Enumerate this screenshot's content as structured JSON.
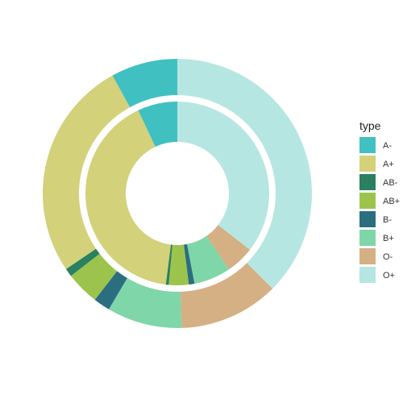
{
  "chart_data": {
    "type": "pie",
    "subtype": "nested-donut",
    "legend": {
      "title": "type",
      "placement": "right",
      "entries": [
        {
          "label": "A-",
          "color": "#40C0C0"
        },
        {
          "label": "A+",
          "color": "#D3D17A"
        },
        {
          "label": "AB-",
          "color": "#2A8060"
        },
        {
          "label": "AB+",
          "color": "#9CC44C"
        },
        {
          "label": "B-",
          "color": "#2B6E80"
        },
        {
          "label": "B+",
          "color": "#7FD6A8"
        },
        {
          "label": "O-",
          "color": "#D4B084"
        },
        {
          "label": "O+",
          "color": "#B6E6E2"
        }
      ]
    },
    "rings": [
      {
        "name": "inner",
        "slices": [
          {
            "type": "O+",
            "value": 35.5
          },
          {
            "type": "O-",
            "value": 5.0
          },
          {
            "type": "B+",
            "value": 6.5
          },
          {
            "type": "B-",
            "value": 1.0
          },
          {
            "type": "AB+",
            "value": 3.5
          },
          {
            "type": "AB-",
            "value": 0.5
          },
          {
            "type": "A+",
            "value": 41.0
          },
          {
            "type": "A-",
            "value": 7.0
          }
        ]
      },
      {
        "name": "outer",
        "slices": [
          {
            "type": "O+",
            "value": 37.5
          },
          {
            "type": "O-",
            "value": 12.0
          },
          {
            "type": "B+",
            "value": 9.0
          },
          {
            "type": "B-",
            "value": 2.0
          },
          {
            "type": "AB+",
            "value": 4.0
          },
          {
            "type": "AB-",
            "value": 1.0
          },
          {
            "type": "A+",
            "value": 26.5
          },
          {
            "type": "A-",
            "value": 8.0
          }
        ]
      }
    ]
  }
}
